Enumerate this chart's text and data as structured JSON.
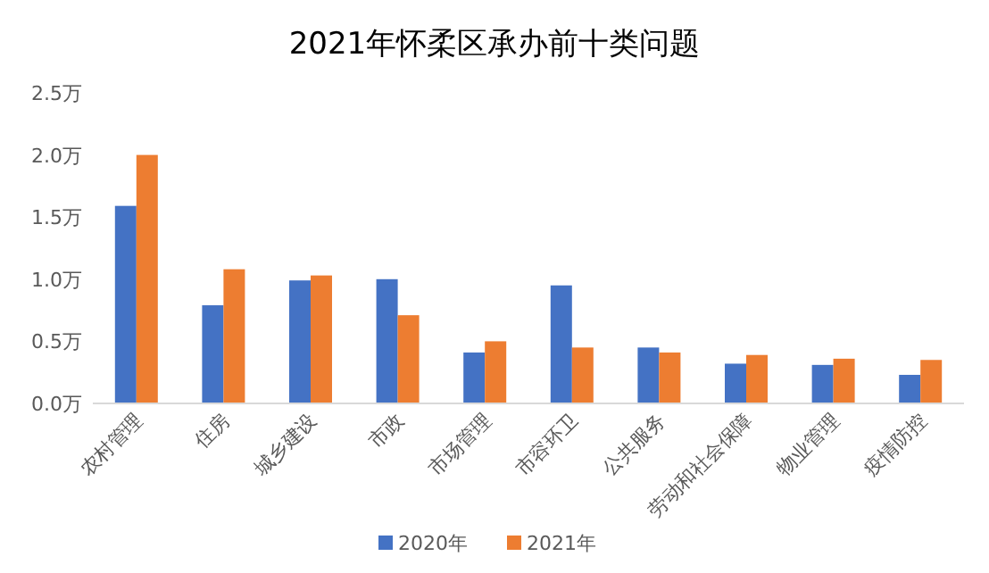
{
  "chart_data": {
    "type": "bar",
    "title": "2021年怀柔区承办前十类问题",
    "categories": [
      "农村管理",
      "住房",
      "城乡建设",
      "市政",
      "市场管理",
      "市容环卫",
      "公共服务",
      "劳动和社会保障",
      "物业管理",
      "疫情防控"
    ],
    "series": [
      {
        "name": "2020年",
        "color": "#4472c4",
        "values": [
          1.59,
          0.79,
          0.99,
          1.0,
          0.41,
          0.95,
          0.45,
          0.32,
          0.31,
          0.23
        ]
      },
      {
        "name": "2021年",
        "color": "#ed7d31",
        "values": [
          2.0,
          1.08,
          1.03,
          0.71,
          0.5,
          0.45,
          0.41,
          0.39,
          0.36,
          0.35
        ]
      }
    ],
    "ylim": [
      0,
      2.5
    ],
    "yticks": [
      {
        "value": 0,
        "label": "0.0万"
      },
      {
        "value": 0.5,
        "label": "0.5万"
      },
      {
        "value": 1,
        "label": "1.0万"
      },
      {
        "value": 1.5,
        "label": "1.5万"
      },
      {
        "value": 2,
        "label": "2.0万"
      },
      {
        "value": 2.5,
        "label": "2.5万"
      }
    ],
    "grid": false,
    "legend": "bottom"
  }
}
